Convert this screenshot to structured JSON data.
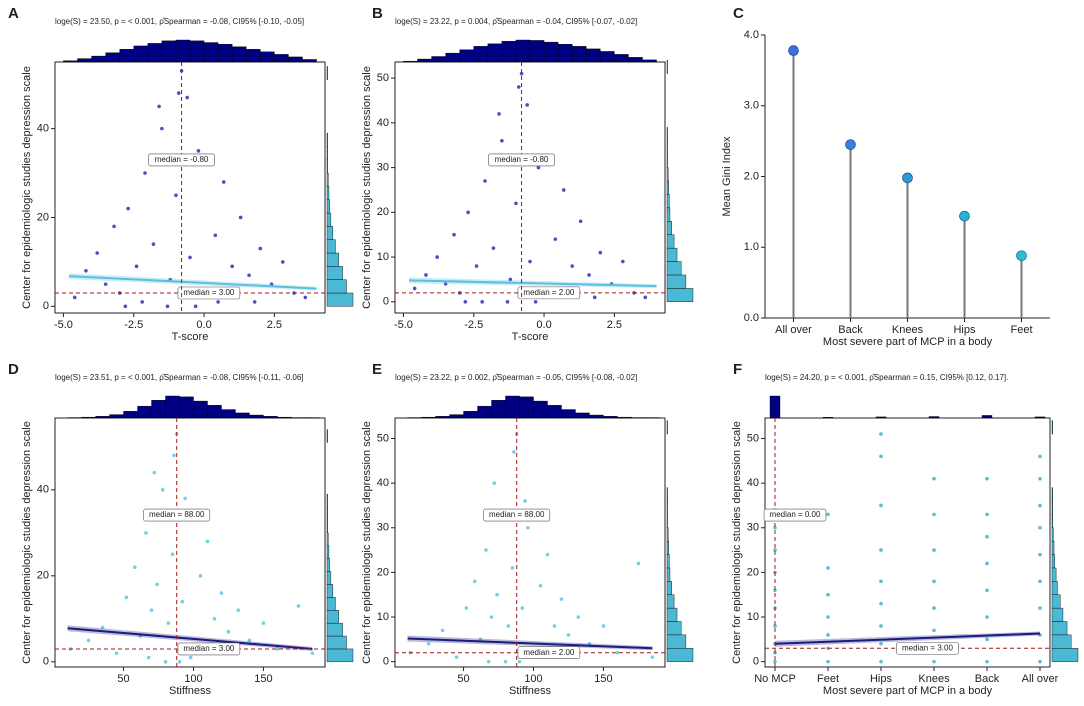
{
  "chart_data": [
    {
      "type": "scatter",
      "panel": "A",
      "subtitle": "loge(S) = 23.50, p = < 0.001, ρ̂Spearman = -0.08, CI95% [-0.10, -0.05]",
      "xlabel": "T-score",
      "ylabel": "Center for epidemiologic studies depression scale",
      "xlim": [
        -5.3,
        4.3
      ],
      "xticks": [
        {
          "value": -5,
          "label": "-5.0"
        },
        -2.5,
        {
          "value": 0,
          "label": "0.0"
        },
        2.5
      ],
      "ylim": [
        -1.5,
        55
      ],
      "yticks": [
        0,
        20,
        40
      ],
      "point_color": "#2f2fb5",
      "fit_color": "#5bc0de",
      "x": [
        -4.6,
        -4.2,
        -3.8,
        -3.5,
        -3.2,
        -3.0,
        -2.7,
        -2.4,
        -2.1,
        -1.8,
        -1.5,
        -1.2,
        -1.0,
        -0.8,
        -0.5,
        -0.2,
        0.1,
        0.4,
        0.7,
        1.0,
        1.3,
        1.6,
        2.0,
        2.4,
        2.8,
        3.2,
        3.6,
        -1.6,
        -0.9,
        -2.2,
        -0.3,
        0.5,
        -1.3,
        -2.8,
        1.8,
        -0.6
      ],
      "y": [
        2,
        8,
        12,
        5,
        18,
        3,
        22,
        9,
        30,
        14,
        40,
        6,
        25,
        53,
        11,
        35,
        4,
        16,
        28,
        9,
        20,
        7,
        13,
        5,
        10,
        3,
        2,
        45,
        48,
        1,
        0,
        1,
        0,
        0,
        1,
        47
      ],
      "fit": {
        "x": [
          -4.8,
          4.0
        ],
        "y": [
          6.8,
          4.0
        ]
      },
      "x_median": {
        "value": -0.8,
        "label": "median = -0.80"
      },
      "y_median": {
        "value": 3,
        "label": "median = 3.00"
      },
      "x_hist": {
        "bins": [
          -5,
          -4.5,
          -4,
          -3.5,
          -3,
          -2.5,
          -2,
          -1.5,
          -1,
          -0.5,
          0,
          0.5,
          1,
          1.5,
          2,
          2.5,
          3,
          3.5,
          4
        ],
        "counts": [
          3,
          8,
          14,
          22,
          30,
          38,
          44,
          50,
          52,
          50,
          46,
          42,
          36,
          30,
          24,
          18,
          12,
          6
        ]
      },
      "y_hist": {
        "bins": [
          0,
          3,
          6,
          9,
          12,
          15,
          18,
          21,
          24,
          27,
          30,
          33,
          36,
          39,
          42,
          45,
          48,
          51,
          54
        ],
        "counts": [
          40,
          30,
          24,
          18,
          13,
          9,
          6,
          4,
          3,
          2,
          1,
          1,
          1,
          0,
          0,
          0,
          0,
          1
        ]
      }
    },
    {
      "type": "scatter",
      "panel": "B",
      "subtitle": "loge(S) = 23.22, p = 0.004, ρ̂Spearman = -0.04, CI95% [-0.07, -0.02]",
      "xlabel": "T-score",
      "ylabel": "Center for epidemiologic studies depression scale",
      "xlim": [
        -5.3,
        4.3
      ],
      "xticks": [
        {
          "value": -5,
          "label": "-5.0"
        },
        -2.5,
        {
          "value": 0,
          "label": "0.0"
        },
        2.5
      ],
      "ylim": [
        -2.5,
        53.6
      ],
      "yticks": [
        0,
        10,
        20,
        30,
        40,
        50
      ],
      "point_color": "#2f2fb5",
      "fit_color": "#5bc0de",
      "x": [
        -4.6,
        -4.2,
        -3.8,
        -3.5,
        -3.2,
        -3.0,
        -2.7,
        -2.4,
        -2.1,
        -1.8,
        -1.5,
        -1.2,
        -1.0,
        -0.8,
        -0.5,
        -0.2,
        0.1,
        0.4,
        0.7,
        1.0,
        1.3,
        1.6,
        2.0,
        2.4,
        2.8,
        3.2,
        3.6,
        -1.6,
        -0.9,
        -2.2,
        -0.3,
        0.5,
        -1.3,
        -2.8,
        1.8,
        -0.6
      ],
      "y": [
        3,
        6,
        10,
        4,
        15,
        2,
        20,
        8,
        27,
        12,
        36,
        5,
        22,
        51,
        9,
        30,
        3,
        14,
        25,
        8,
        18,
        6,
        11,
        4,
        9,
        2,
        1,
        42,
        48,
        0,
        0,
        1,
        0,
        0,
        1,
        44
      ],
      "fit": {
        "x": [
          -4.8,
          4.0
        ],
        "y": [
          4.8,
          3.5
        ]
      },
      "x_median": {
        "value": -0.8,
        "label": "median = -0.80"
      },
      "y_median": {
        "value": 2,
        "label": "median = 2.00"
      },
      "x_hist": {
        "bins": [
          -5,
          -4.5,
          -4,
          -3.5,
          -3,
          -2.5,
          -2,
          -1.5,
          -1,
          -0.5,
          0,
          0.5,
          1,
          1.5,
          2,
          2.5,
          3,
          3.5,
          4
        ],
        "counts": [
          2,
          7,
          13,
          21,
          29,
          37,
          43,
          49,
          52,
          51,
          47,
          42,
          37,
          31,
          25,
          18,
          11,
          5
        ]
      },
      "y_hist": {
        "bins": [
          0,
          3,
          6,
          9,
          12,
          15,
          18,
          21,
          24,
          27,
          30,
          33,
          36,
          39,
          42,
          45,
          48,
          51,
          54
        ],
        "counts": [
          44,
          32,
          24,
          17,
          12,
          8,
          5,
          4,
          3,
          2,
          1,
          1,
          1,
          0,
          0,
          0,
          0,
          1
        ]
      }
    },
    {
      "type": "lollipop",
      "panel": "C",
      "xlabel": "Most severe part of MCP in a body",
      "ylabel": "Mean Gini Index",
      "categories": [
        "All over",
        "Back",
        "Knees",
        "Hips",
        "Feet"
      ],
      "values": [
        3.78,
        2.45,
        1.98,
        1.44,
        0.88
      ],
      "colors": [
        "#3a6fe0",
        "#3582dc",
        "#2e9ad6",
        "#28b0d0",
        "#22c4cc"
      ],
      "ylim": [
        0,
        4
      ],
      "yticks": [
        {
          "value": 0,
          "label": "0.0"
        },
        {
          "value": 1,
          "label": "1.0"
        },
        {
          "value": 2,
          "label": "2.0"
        },
        {
          "value": 3,
          "label": "3.0"
        },
        {
          "value": 4,
          "label": "4.0"
        }
      ]
    },
    {
      "type": "scatter",
      "panel": "D",
      "subtitle": "loge(S) = 23.51, p = < 0.001, ρ̂Spearman = -0.08, CI95% [-0.11, -0.06]",
      "xlabel": "Stiffness",
      "ylabel": "Center for epidemiologic studies depression scale",
      "xlim": [
        1,
        194
      ],
      "xticks": [
        50,
        100,
        150
      ],
      "ylim": [
        -1.2,
        56.7
      ],
      "yticks": [
        0,
        20,
        40
      ],
      "point_color": "#5cc8e2",
      "fit_color": "#1a1a80",
      "x": [
        12,
        25,
        35,
        45,
        52,
        58,
        62,
        66,
        70,
        74,
        78,
        82,
        85,
        88,
        92,
        96,
        100,
        105,
        110,
        115,
        120,
        125,
        132,
        140,
        150,
        160,
        175,
        185,
        68,
        80,
        90,
        98,
        72,
        86,
        94,
        108
      ],
      "y": [
        3,
        5,
        8,
        2,
        15,
        22,
        6,
        30,
        12,
        18,
        40,
        9,
        25,
        53,
        14,
        35,
        4,
        20,
        28,
        10,
        16,
        7,
        12,
        5,
        9,
        3,
        13,
        2,
        1,
        0,
        0,
        1,
        44,
        48,
        38,
        2
      ],
      "fit": {
        "x": [
          10,
          185
        ],
        "y": [
          7.8,
          3.0
        ]
      },
      "x_median": {
        "value": 88,
        "label": "median = 88.00"
      },
      "y_median": {
        "value": 3,
        "label": "median = 3.00"
      },
      "x_hist": {
        "bins": [
          10,
          20,
          30,
          40,
          50,
          60,
          70,
          80,
          90,
          100,
          110,
          120,
          130,
          140,
          150,
          160,
          170,
          180,
          190
        ],
        "counts": [
          1,
          2,
          4,
          8,
          16,
          28,
          42,
          52,
          50,
          40,
          30,
          20,
          12,
          7,
          4,
          2,
          1,
          1
        ]
      },
      "y_hist": {
        "bins": [
          0,
          3,
          6,
          9,
          12,
          15,
          18,
          21,
          24,
          27,
          30,
          33,
          36,
          39,
          42,
          45,
          48,
          51,
          54
        ],
        "counts": [
          40,
          30,
          24,
          18,
          13,
          9,
          6,
          4,
          3,
          2,
          1,
          1,
          1,
          0,
          0,
          0,
          0,
          1
        ]
      }
    },
    {
      "type": "scatter",
      "panel": "E",
      "subtitle": "loge(S) = 23.22, p = 0.002, ρ̂Spearman = -0.05, CI95% [-0.08, -0.02]",
      "xlabel": "Stiffness",
      "ylabel": "Center for epidemiologic studies depression scale",
      "xlim": [
        1,
        194
      ],
      "xticks": [
        50,
        100,
        150
      ],
      "ylim": [
        -1.2,
        54.6
      ],
      "yticks": [
        0,
        10,
        20,
        30,
        40,
        50
      ],
      "point_color": "#5cc8e2",
      "fit_color": "#1a1a80",
      "x": [
        12,
        25,
        35,
        45,
        52,
        58,
        62,
        66,
        70,
        74,
        78,
        82,
        85,
        88,
        92,
        96,
        100,
        105,
        110,
        115,
        120,
        125,
        132,
        140,
        150,
        160,
        175,
        185,
        68,
        80,
        90,
        98,
        72,
        86,
        94,
        108
      ],
      "y": [
        2,
        4,
        7,
        1,
        12,
        18,
        5,
        25,
        10,
        15,
        33,
        8,
        21,
        51,
        12,
        30,
        3,
        17,
        24,
        8,
        14,
        6,
        10,
        4,
        8,
        2,
        22,
        1,
        0,
        0,
        0,
        1,
        40,
        47,
        36,
        1
      ],
      "fit": {
        "x": [
          10,
          185
        ],
        "y": [
          5.2,
          3.0
        ]
      },
      "x_median": {
        "value": 88,
        "label": "median = 88.00"
      },
      "y_median": {
        "value": 2,
        "label": "median = 2.00"
      },
      "x_hist": {
        "bins": [
          10,
          20,
          30,
          40,
          50,
          60,
          70,
          80,
          90,
          100,
          110,
          120,
          130,
          140,
          150,
          160,
          170,
          180,
          190
        ],
        "counts": [
          1,
          2,
          4,
          8,
          16,
          28,
          42,
          52,
          50,
          40,
          30,
          20,
          12,
          7,
          4,
          2,
          1,
          1
        ]
      },
      "y_hist": {
        "bins": [
          0,
          3,
          6,
          9,
          12,
          15,
          18,
          21,
          24,
          27,
          30,
          33,
          36,
          39,
          42,
          45,
          48,
          51,
          54
        ],
        "counts": [
          44,
          32,
          24,
          17,
          12,
          8,
          5,
          4,
          3,
          2,
          1,
          1,
          1,
          0,
          0,
          0,
          0,
          1
        ]
      }
    },
    {
      "type": "strip",
      "panel": "F",
      "subtitle": "loge(S) = 24.20, p = < 0.001, ρ̂Spearman = 0.15, CI95% [0.12, 0.17].",
      "xlabel": "Most severe part of MCP in a body",
      "ylabel": "Center for epidemiologic studies depression scale",
      "categories": [
        "No MCP",
        "Feet",
        "Hips",
        "Knees",
        "Back",
        "All over"
      ],
      "ylim": [
        -1.2,
        54.6
      ],
      "yticks": [
        0,
        10,
        20,
        30,
        40,
        50
      ],
      "point_color": "#3ab2ce",
      "fit_color": "#1a1a80",
      "x": [
        "No MCP",
        "No MCP",
        "No MCP",
        "No MCP",
        "No MCP",
        "No MCP",
        "No MCP",
        "No MCP",
        "No MCP",
        "No MCP",
        "Feet",
        "Feet",
        "Feet",
        "Feet",
        "Feet",
        "Feet",
        "Feet",
        "Hips",
        "Hips",
        "Hips",
        "Hips",
        "Hips",
        "Hips",
        "Hips",
        "Hips",
        "Hips",
        "Knees",
        "Knees",
        "Knees",
        "Knees",
        "Knees",
        "Knees",
        "Knees",
        "Knees",
        "Back",
        "Back",
        "Back",
        "Back",
        "Back",
        "Back",
        "Back",
        "Back",
        "All over",
        "All over",
        "All over",
        "All over",
        "All over",
        "All over",
        "All over",
        "All over",
        "All over"
      ],
      "y": [
        0,
        2,
        4,
        8,
        12,
        16,
        20,
        25,
        30,
        34,
        0,
        3,
        6,
        10,
        15,
        21,
        33,
        0,
        4,
        8,
        13,
        18,
        25,
        35,
        46,
        51,
        0,
        3,
        7,
        12,
        18,
        25,
        33,
        41,
        0,
        5,
        10,
        16,
        22,
        28,
        33,
        41,
        0,
        6,
        12,
        18,
        24,
        30,
        35,
        41,
        46
      ],
      "fit": {
        "y": [
          4.0,
          6.3
        ]
      },
      "x_median": {
        "value": 0,
        "label": "median = 0.00"
      },
      "y_median": {
        "value": 3,
        "label": "median = 3.00"
      },
      "x_hist": {
        "counts": [
          60,
          2,
          3,
          4,
          7,
          3
        ]
      },
      "y_hist": {
        "bins": [
          0,
          3,
          6,
          9,
          12,
          15,
          18,
          21,
          24,
          27,
          30,
          33,
          36,
          39,
          42,
          45,
          48,
          51,
          54
        ],
        "counts": [
          38,
          28,
          22,
          16,
          12,
          8,
          6,
          4,
          3,
          2,
          1,
          1,
          1,
          0,
          0,
          0,
          0,
          1
        ]
      }
    }
  ]
}
